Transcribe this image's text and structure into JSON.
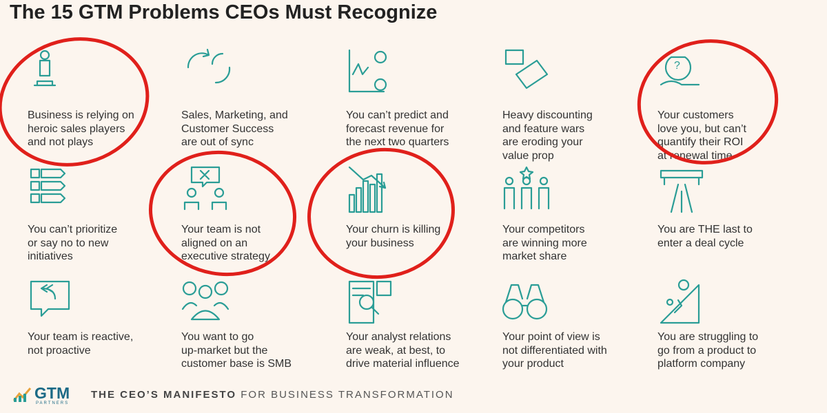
{
  "title": "The 15 GTM Problems CEOs Must Recognize",
  "items": [
    {
      "lines": [
        "Business is relying on",
        "heroic sales players",
        "and not plays"
      ],
      "circled": true
    },
    {
      "lines": [
        "Sales, Marketing, and",
        "Customer Success",
        "are out of sync"
      ],
      "circled": false
    },
    {
      "lines": [
        "You can’t predict and",
        "forecast revenue for",
        "the next two quarters"
      ],
      "circled": false
    },
    {
      "lines": [
        "Heavy discounting",
        "and feature wars",
        "are eroding your",
        "value prop"
      ],
      "circled": false
    },
    {
      "lines": [
        "Your customers",
        "love you, but can’t",
        "quantify their ROI",
        "at renewal time"
      ],
      "circled": true
    },
    {
      "lines": [
        "You can’t prioritize",
        "or say no to new",
        "initiatives"
      ],
      "circled": false
    },
    {
      "lines": [
        "Your team is not",
        "aligned on an",
        "executive strategy"
      ],
      "circled": true
    },
    {
      "lines": [
        "Your churn is killing",
        "your business"
      ],
      "circled": true
    },
    {
      "lines": [
        "Your competitors",
        "are winning more",
        "market share"
      ],
      "circled": false
    },
    {
      "lines": [
        "You are THE last to",
        "enter a deal cycle"
      ],
      "circled": false
    },
    {
      "lines": [
        "Your team is reactive,",
        "not proactive"
      ],
      "circled": false
    },
    {
      "lines": [
        "You want to go",
        "up-market but the",
        "customer base is SMB"
      ],
      "circled": false
    },
    {
      "lines": [
        "Your analyst relations",
        "are weak, at best, to",
        "drive material influence"
      ],
      "circled": false
    },
    {
      "lines": [
        "Your point of view is",
        "not differentiated with",
        "your product"
      ],
      "circled": false
    },
    {
      "lines": [
        "You are struggling to",
        "go from a product to",
        "platform company"
      ],
      "circled": false
    }
  ],
  "footer": {
    "logo": "GTM",
    "logo_sub": "PARTNERS",
    "tagline_bold": "THE CEO’S MANIFESTO",
    "tagline": "FOR BUSINESS TRANSFORMATION"
  }
}
